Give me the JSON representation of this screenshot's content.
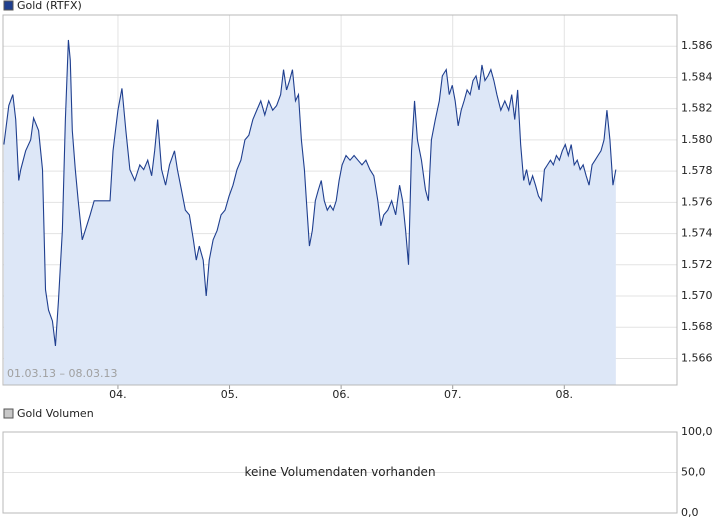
{
  "chart_data": [
    {
      "type": "line",
      "date_range": "01.03.13 – 08.03.13",
      "x": [
        2.978,
        3.022,
        3.058,
        3.084,
        3.111,
        3.129,
        3.173,
        3.218,
        3.244,
        3.289,
        3.324,
        3.351,
        3.378,
        3.413,
        3.44,
        3.467,
        3.502,
        3.529,
        3.556,
        3.573,
        3.591,
        3.618,
        3.644,
        3.68,
        3.707,
        3.751,
        3.787,
        3.822,
        3.884,
        3.929,
        3.956,
        4.0,
        4.036,
        4.071,
        4.107,
        4.151,
        4.196,
        4.231,
        4.267,
        4.302,
        4.329,
        4.356,
        4.391,
        4.427,
        4.462,
        4.507,
        4.533,
        4.569,
        4.604,
        4.64,
        4.676,
        4.702,
        4.729,
        4.764,
        4.791,
        4.818,
        4.853,
        4.889,
        4.924,
        4.96,
        4.996,
        5.031,
        5.067,
        5.102,
        5.138,
        5.173,
        5.209,
        5.244,
        5.28,
        5.316,
        5.351,
        5.387,
        5.422,
        5.458,
        5.484,
        5.511,
        5.538,
        5.564,
        5.591,
        5.618,
        5.644,
        5.671,
        5.689,
        5.716,
        5.742,
        5.769,
        5.796,
        5.822,
        5.849,
        5.876,
        5.902,
        5.929,
        5.956,
        5.982,
        6.009,
        6.044,
        6.08,
        6.116,
        6.151,
        6.187,
        6.222,
        6.258,
        6.293,
        6.329,
        6.356,
        6.382,
        6.418,
        6.453,
        6.489,
        6.524,
        6.551,
        6.578,
        6.604,
        6.631,
        6.658,
        6.684,
        6.72,
        6.756,
        6.782,
        6.809,
        6.844,
        6.88,
        6.907,
        6.942,
        6.969,
        6.996,
        7.022,
        7.049,
        7.076,
        7.102,
        7.129,
        7.156,
        7.182,
        7.209,
        7.236,
        7.262,
        7.289,
        7.316,
        7.342,
        7.369,
        7.396,
        7.431,
        7.467,
        7.502,
        7.529,
        7.556,
        7.582,
        7.609,
        7.636,
        7.662,
        7.689,
        7.716,
        7.742,
        7.769,
        7.796,
        7.822,
        7.849,
        7.876,
        7.902,
        7.929,
        7.956,
        7.982,
        8.009,
        8.036,
        8.062,
        8.089,
        8.116,
        8.142,
        8.169,
        8.196,
        8.222,
        8.249,
        8.276,
        8.302,
        8.329,
        8.356,
        8.382,
        8.409,
        8.436,
        8.462
      ],
      "series": [
        {
          "name": "Gold (RTFX)",
          "color": "#1f3f8f",
          "values": [
            1.5797,
            1.5822,
            1.5829,
            1.5813,
            1.5774,
            1.5781,
            1.5793,
            1.58,
            1.5814,
            1.5806,
            1.5781,
            1.5704,
            1.5691,
            1.5684,
            1.5668,
            1.5697,
            1.5742,
            1.5813,
            1.5864,
            1.5851,
            1.5806,
            1.5781,
            1.5761,
            1.5736,
            1.5742,
            1.5752,
            1.5761,
            1.5761,
            1.5761,
            1.5761,
            1.5793,
            1.5819,
            1.5833,
            1.5806,
            1.5781,
            1.5774,
            1.5784,
            1.5781,
            1.5787,
            1.5777,
            1.5793,
            1.5813,
            1.5781,
            1.5771,
            1.5784,
            1.5793,
            1.5781,
            1.5768,
            1.5755,
            1.5752,
            1.5736,
            1.5723,
            1.5732,
            1.5723,
            1.57,
            1.5723,
            1.5736,
            1.5742,
            1.5752,
            1.5755,
            1.5764,
            1.5771,
            1.5781,
            1.5787,
            1.58,
            1.5803,
            1.5813,
            1.5819,
            1.5825,
            1.5816,
            1.5825,
            1.5819,
            1.5822,
            1.5829,
            1.5845,
            1.5832,
            1.5838,
            1.5845,
            1.5825,
            1.5829,
            1.58,
            1.5781,
            1.5761,
            1.5732,
            1.5742,
            1.5761,
            1.5768,
            1.5774,
            1.5761,
            1.5755,
            1.5758,
            1.5755,
            1.5761,
            1.5774,
            1.5784,
            1.579,
            1.5787,
            1.579,
            1.5787,
            1.5784,
            1.5787,
            1.5781,
            1.5777,
            1.5761,
            1.5745,
            1.5752,
            1.5755,
            1.5761,
            1.5752,
            1.5771,
            1.5761,
            1.5742,
            1.572,
            1.5793,
            1.5825,
            1.58,
            1.5787,
            1.5768,
            1.5761,
            1.58,
            1.5813,
            1.5825,
            1.5841,
            1.5845,
            1.5829,
            1.5835,
            1.5825,
            1.5809,
            1.5819,
            1.5825,
            1.5832,
            1.5829,
            1.5838,
            1.5841,
            1.5832,
            1.5848,
            1.5838,
            1.5841,
            1.5845,
            1.5838,
            1.5829,
            1.5819,
            1.5825,
            1.5819,
            1.5829,
            1.5813,
            1.5832,
            1.5797,
            1.5774,
            1.5781,
            1.5771,
            1.5777,
            1.5771,
            1.5764,
            1.5761,
            1.5781,
            1.5784,
            1.5787,
            1.5784,
            1.579,
            1.5787,
            1.5793,
            1.5797,
            1.579,
            1.5797,
            1.5784,
            1.5787,
            1.5781,
            1.5784,
            1.5777,
            1.5771,
            1.5784,
            1.5787,
            1.579,
            1.5793,
            1.58,
            1.5819,
            1.58,
            1.5771,
            1.5781
          ]
        }
      ],
      "fill_color": "#dde7f7",
      "xlim": [
        2.97,
        9.01
      ],
      "xticks": [
        {
          "value": 4,
          "label": "04."
        },
        {
          "value": 5,
          "label": "05."
        },
        {
          "value": 6,
          "label": "06."
        },
        {
          "value": 7,
          "label": "07."
        },
        {
          "value": 8,
          "label": "08."
        }
      ],
      "ylim": [
        1.5643,
        1.588
      ],
      "yticks": [
        1.566,
        1.568,
        {
          "value": 1.57,
          "label": "1.570"
        },
        1.572,
        1.574,
        1.576,
        1.578,
        {
          "value": 1.58,
          "label": "1.580"
        },
        1.582,
        1.584,
        1.586
      ],
      "grid": true
    },
    {
      "type": "bar",
      "series": [
        {
          "name": "Gold Volumen",
          "color": "#c8c8c8",
          "values": []
        }
      ],
      "note": "keine Volumendaten vorhanden",
      "ylim": [
        0,
        100
      ],
      "yticks": [
        {
          "value": 0,
          "label": "0,0"
        },
        {
          "value": 50,
          "label": "50,0"
        },
        {
          "value": 100,
          "label": "100,0"
        }
      ],
      "grid": true
    }
  ]
}
